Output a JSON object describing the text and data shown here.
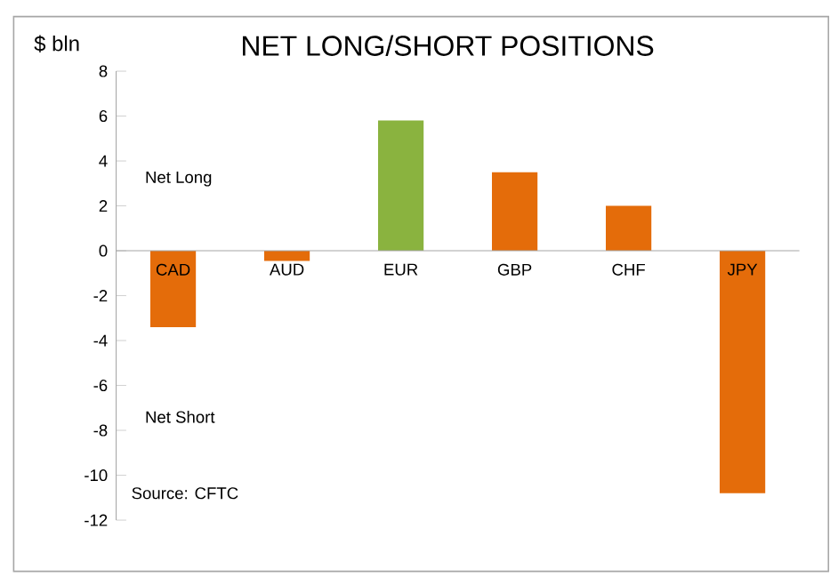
{
  "chart_data": {
    "type": "bar",
    "title": "NET LONG/SHORT POSITIONS",
    "ylabel": "$ bln",
    "categories": [
      "CAD",
      "AUD",
      "EUR",
      "GBP",
      "CHF",
      "JPY"
    ],
    "values": [
      -3.4,
      -0.45,
      5.8,
      3.5,
      2.0,
      -10.8
    ],
    "colors": [
      "#e46c0a",
      "#e46c0a",
      "#8ab33f",
      "#e46c0a",
      "#e46c0a",
      "#e46c0a"
    ],
    "ylim": [
      -12,
      8
    ],
    "yticks": [
      -12,
      -10,
      -8,
      -6,
      -4,
      -2,
      0,
      2,
      4,
      6,
      8
    ],
    "grid": false,
    "annotations": [
      "Net Long",
      "Net Short",
      "Source: CFTC"
    ]
  }
}
